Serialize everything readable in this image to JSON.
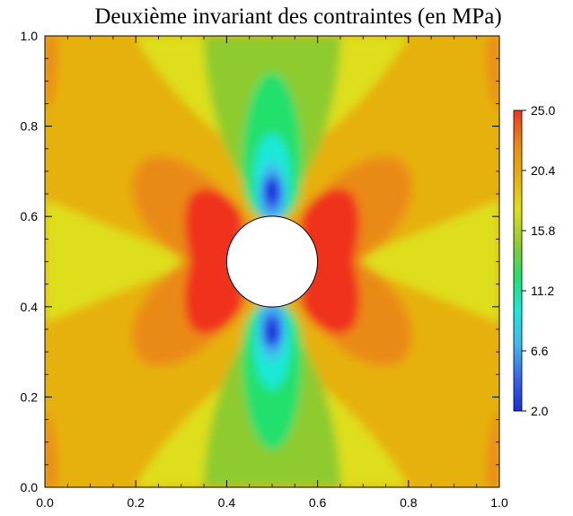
{
  "chart_data": {
    "type": "heatmap",
    "title": "Deuxième invariant des contraintes (en MPa)",
    "xlabel": "",
    "ylabel": "",
    "xlim": [
      0.0,
      1.0
    ],
    "ylim": [
      0.0,
      1.0
    ],
    "x_ticks": [
      "0.0",
      "0.2",
      "0.4",
      "0.6",
      "0.8",
      "1.0"
    ],
    "y_ticks": [
      "0.0",
      "0.2",
      "0.4",
      "0.6",
      "0.8",
      "1.0"
    ],
    "colorbar": {
      "range": [
        2.0,
        25.0
      ],
      "tick_labels": [
        "2.0",
        "6.6",
        "11.2",
        "15.8",
        "20.4",
        "25.0"
      ]
    },
    "hole": {
      "center": [
        0.5,
        0.5
      ],
      "radius": 0.1
    },
    "level_colors": [
      "#1a2edc",
      "#3a66ec",
      "#3fb8f0",
      "#1be8d8",
      "#22e06c",
      "#8ecb2e",
      "#dede1c",
      "#e6b010",
      "#ea8a16",
      "#f0331f"
    ],
    "grid": false
  }
}
